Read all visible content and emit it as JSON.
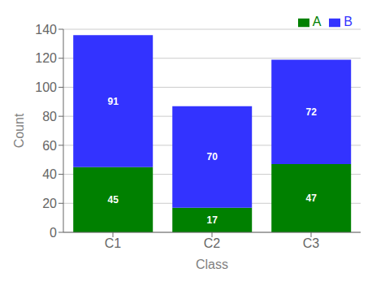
{
  "chart_data": {
    "type": "bar",
    "stacked": true,
    "categories": [
      "C1",
      "C2",
      "C3"
    ],
    "series": [
      {
        "name": "A",
        "color": "#008000",
        "values": [
          45,
          17,
          47
        ]
      },
      {
        "name": "B",
        "color": "#3333FF",
        "values": [
          91,
          70,
          72
        ]
      }
    ],
    "xlabel": "Class",
    "ylabel": "Count",
    "ylim": [
      0,
      140
    ],
    "yticks": [
      0,
      20,
      40,
      60,
      80,
      100,
      120,
      140
    ],
    "grid": true,
    "legend": "upper right",
    "data_labels": true
  }
}
